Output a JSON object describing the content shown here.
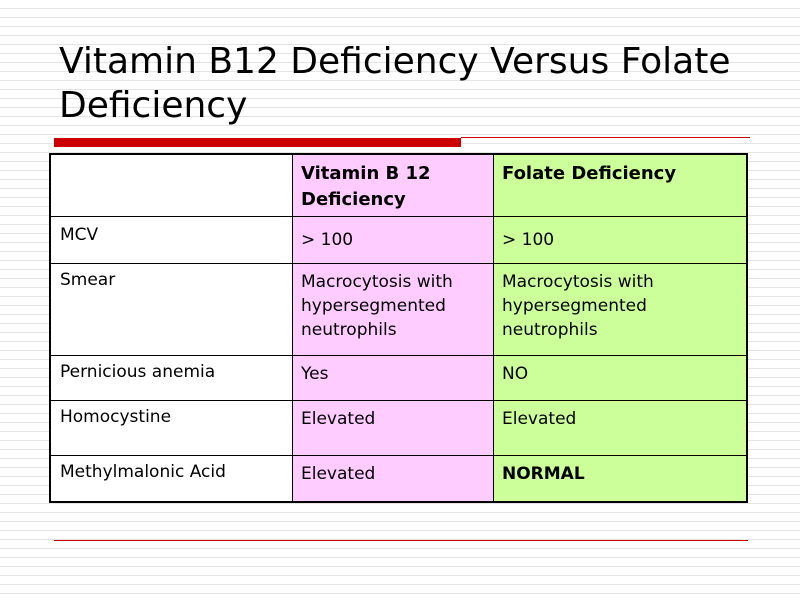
{
  "slide": {
    "title": "Vitamin B12 Deficiency Versus Folate Deficiency",
    "colors": {
      "accent": "#cc0000",
      "b12_column": "#ffccff",
      "folate_column": "#ccff99"
    }
  },
  "table": {
    "headers": [
      "",
      "Vitamin B 12 Deficiency",
      "Folate Deficiency"
    ],
    "rows": [
      {
        "label": "MCV",
        "b12": "> 100",
        "folate": "> 100"
      },
      {
        "label": "Smear",
        "b12": "Macrocytosis with hypersegmented neutrophils",
        "folate": "Macrocytosis with hypersegmented neutrophils"
      },
      {
        "label": "Pernicious anemia",
        "b12": "Yes",
        "folate": "NO"
      },
      {
        "label": "Homocystine",
        "b12": "Elevated",
        "folate": "Elevated"
      },
      {
        "label": "Methylmalonic Acid",
        "b12": "Elevated",
        "folate": "NORMAL"
      }
    ]
  }
}
